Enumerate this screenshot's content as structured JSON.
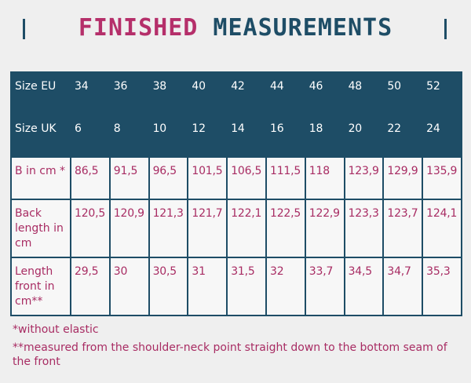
{
  "title": {
    "part1": "FINISHED",
    "part2": "MEASUREMENTS"
  },
  "colors": {
    "pink": "#a82c63",
    "teal": "#1e4d66",
    "background": "#efefef"
  },
  "table": {
    "rows": [
      {
        "label": "Size EU",
        "values": [
          "34",
          "36",
          "38",
          "40",
          "42",
          "44",
          "46",
          "48",
          "50",
          "52"
        ]
      },
      {
        "label": "Size UK",
        "values": [
          "6",
          "8",
          "10",
          "12",
          "14",
          "16",
          "18",
          "20",
          "22",
          "24"
        ]
      },
      {
        "label": "B in cm *",
        "values": [
          "86,5",
          "91,5",
          "96,5",
          "101,5",
          "106,5",
          "111,5",
          "118",
          "123,9",
          "129,9",
          "135,9"
        ]
      },
      {
        "label": "Back length in cm",
        "values": [
          "120,5",
          "120,9",
          "121,3",
          "121,7",
          "122,1",
          "122,5",
          "122,9",
          "123,3",
          "123,7",
          "124,1"
        ]
      },
      {
        "label": "Length front in cm**",
        "values": [
          "29,5",
          "30",
          "30,5",
          "31",
          "31,5",
          "32",
          "33,7",
          "34,5",
          "34,7",
          "35,3"
        ]
      }
    ]
  },
  "notes": {
    "note1": "*without elastic",
    "note2": "**measured from the shoulder-neck point straight down to the bottom seam of the front"
  }
}
